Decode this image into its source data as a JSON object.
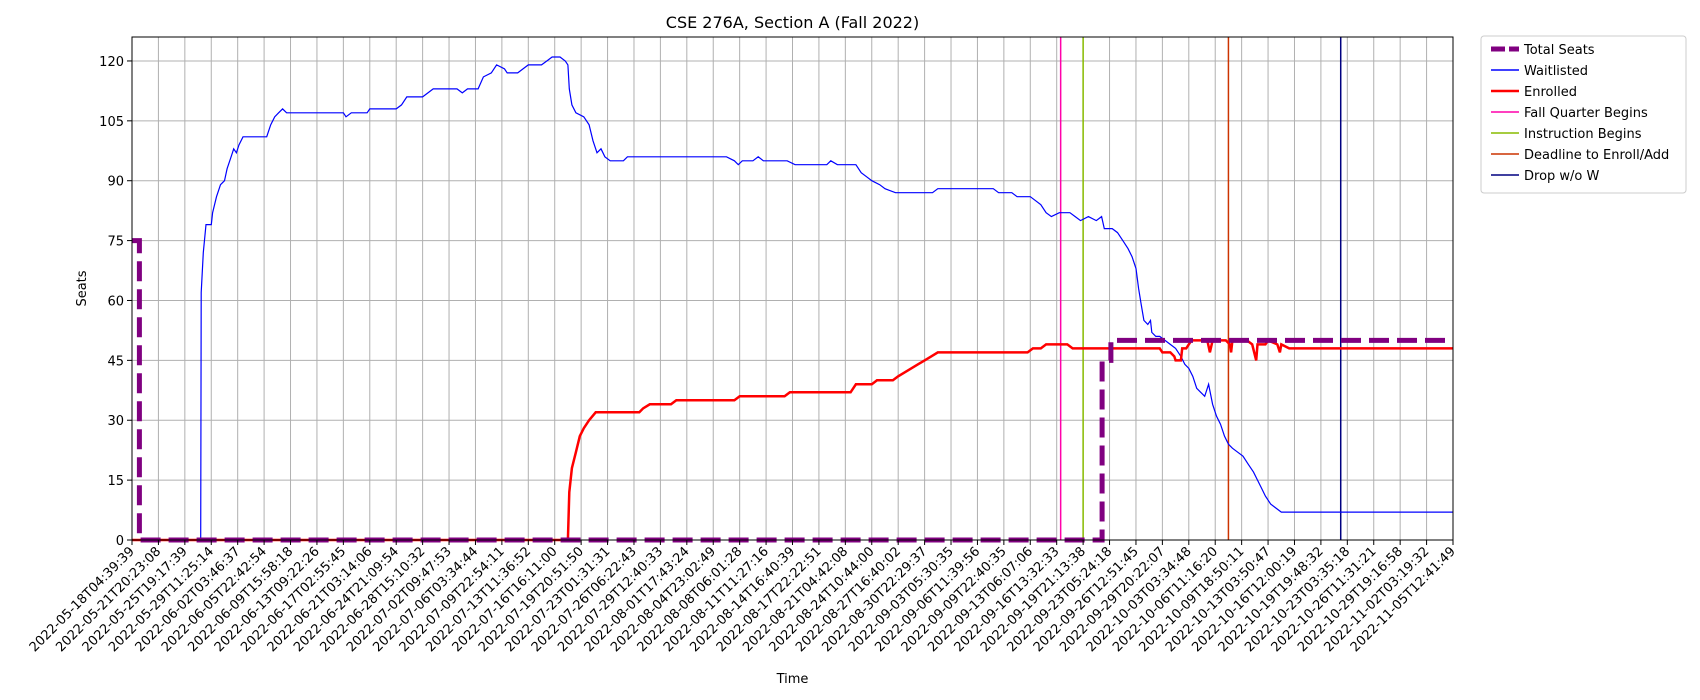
{
  "chart_data": {
    "type": "line",
    "title": "CSE 276A, Section A (Fall 2022)",
    "xlabel": "Time",
    "ylabel": "Seats",
    "ylim": [
      0,
      126
    ],
    "yticks": [
      0,
      15,
      30,
      45,
      60,
      75,
      90,
      105,
      120
    ],
    "grid": true,
    "legend_position": "outside-right",
    "x_tick_labels": [
      "2022-05-18T04:39:39",
      "2022-05-21T20:23:08",
      "2022-05-25T19:17:39",
      "2022-05-29T11:25:14",
      "2022-06-02T03:46:37",
      "2022-06-05T22:42:54",
      "2022-06-09T15:58:18",
      "2022-06-13T09:22:26",
      "2022-06-17T02:55:45",
      "2022-06-21T03:14:06",
      "2022-06-24T21:09:54",
      "2022-06-28T15:10:32",
      "2022-07-02T09:47:53",
      "2022-07-06T03:34:44",
      "2022-07-09T22:54:11",
      "2022-07-13T11:36:52",
      "2022-07-16T16:11:00",
      "2022-07-19T20:51:50",
      "2022-07-23T01:31:31",
      "2022-07-26T06:22:43",
      "2022-07-29T12:40:33",
      "2022-08-01T17:43:24",
      "2022-08-04T23:02:49",
      "2022-08-08T06:01:28",
      "2022-08-11T11:27:16",
      "2022-08-14T16:40:39",
      "2022-08-17T22:22:51",
      "2022-08-21T04:42:08",
      "2022-08-24T10:44:00",
      "2022-08-27T16:40:02",
      "2022-08-30T22:29:37",
      "2022-09-03T05:30:35",
      "2022-09-06T11:39:56",
      "2022-09-09T22:40:35",
      "2022-09-13T06:07:06",
      "2022-09-16T13:32:33",
      "2022-09-19T21:13:38",
      "2022-09-23T05:24:18",
      "2022-09-26T12:51:45",
      "2022-09-29T20:22:07",
      "2022-10-03T03:34:48",
      "2022-10-06T11:16:20",
      "2022-10-09T18:50:11",
      "2022-10-13T03:50:47",
      "2022-10-16T12:00:19",
      "2022-10-19T19:48:32",
      "2022-10-23T03:35:18",
      "2022-10-26T11:31:21",
      "2022-10-29T19:16:58",
      "2022-11-02T03:19:32",
      "2022-11-05T12:41:49"
    ],
    "x_range": [
      0,
      50
    ],
    "series": [
      {
        "name": "Total Seats",
        "color": "#800080",
        "style": "dashed",
        "points": [
          [
            0,
            75
          ],
          [
            0.28,
            75
          ],
          [
            0.28,
            0
          ],
          [
            36.72,
            0
          ],
          [
            36.72,
            45
          ],
          [
            37.05,
            45
          ],
          [
            37.05,
            50
          ],
          [
            50,
            50
          ]
        ]
      },
      {
        "name": "Waitlisted",
        "color": "#0000ff",
        "style": "solid",
        "points": [
          [
            0,
            0
          ],
          [
            2.6,
            0
          ],
          [
            2.62,
            62
          ],
          [
            2.7,
            72
          ],
          [
            2.8,
            79
          ],
          [
            3.0,
            79
          ],
          [
            3.05,
            82
          ],
          [
            3.2,
            86
          ],
          [
            3.35,
            89
          ],
          [
            3.5,
            90
          ],
          [
            3.6,
            93
          ],
          [
            3.75,
            96
          ],
          [
            3.85,
            98
          ],
          [
            3.95,
            97
          ],
          [
            4.05,
            99
          ],
          [
            4.2,
            101
          ],
          [
            4.5,
            101
          ],
          [
            4.7,
            101
          ],
          [
            5.1,
            101
          ],
          [
            5.25,
            104
          ],
          [
            5.4,
            106
          ],
          [
            5.55,
            107
          ],
          [
            5.7,
            108
          ],
          [
            5.85,
            107
          ],
          [
            6.2,
            107
          ],
          [
            7.0,
            107
          ],
          [
            8.0,
            107
          ],
          [
            8.1,
            106
          ],
          [
            8.3,
            107
          ],
          [
            8.9,
            107
          ],
          [
            9.0,
            108
          ],
          [
            10.0,
            108
          ],
          [
            10.2,
            109
          ],
          [
            10.4,
            111
          ],
          [
            11.0,
            111
          ],
          [
            11.2,
            112
          ],
          [
            11.4,
            113
          ],
          [
            12.3,
            113
          ],
          [
            12.5,
            112
          ],
          [
            12.7,
            113
          ],
          [
            13.1,
            113
          ],
          [
            13.3,
            116
          ],
          [
            13.6,
            117
          ],
          [
            13.8,
            119
          ],
          [
            14.1,
            118
          ],
          [
            14.2,
            117
          ],
          [
            14.6,
            117
          ],
          [
            14.8,
            118
          ],
          [
            15.0,
            119
          ],
          [
            15.5,
            119
          ],
          [
            15.7,
            120
          ],
          [
            15.9,
            121
          ],
          [
            16.2,
            121
          ],
          [
            16.4,
            120
          ],
          [
            16.5,
            119
          ],
          [
            16.55,
            113
          ],
          [
            16.65,
            109
          ],
          [
            16.8,
            107
          ],
          [
            17.1,
            106
          ],
          [
            17.3,
            104
          ],
          [
            17.45,
            100
          ],
          [
            17.6,
            97
          ],
          [
            17.75,
            98
          ],
          [
            17.9,
            96
          ],
          [
            18.1,
            95
          ],
          [
            18.6,
            95
          ],
          [
            18.75,
            96
          ],
          [
            19.5,
            96
          ],
          [
            22.0,
            96
          ],
          [
            22.5,
            96
          ],
          [
            22.8,
            95
          ],
          [
            22.95,
            94
          ],
          [
            23.1,
            95
          ],
          [
            23.5,
            95
          ],
          [
            23.7,
            96
          ],
          [
            23.9,
            95
          ],
          [
            24.8,
            95
          ],
          [
            25.1,
            94
          ],
          [
            25.6,
            94
          ],
          [
            26.3,
            94
          ],
          [
            26.45,
            95
          ],
          [
            26.7,
            94
          ],
          [
            27.4,
            94
          ],
          [
            27.6,
            92
          ],
          [
            27.8,
            91
          ],
          [
            28.0,
            90
          ],
          [
            28.3,
            89
          ],
          [
            28.5,
            88
          ],
          [
            28.9,
            87
          ],
          [
            29.5,
            87
          ],
          [
            30.3,
            87
          ],
          [
            30.5,
            88
          ],
          [
            32.0,
            88
          ],
          [
            32.6,
            88
          ],
          [
            32.8,
            87
          ],
          [
            33.3,
            87
          ],
          [
            33.5,
            86
          ],
          [
            34.0,
            86
          ],
          [
            34.2,
            85
          ],
          [
            34.4,
            84
          ],
          [
            34.6,
            82
          ],
          [
            34.8,
            81
          ],
          [
            35.1,
            82
          ],
          [
            35.5,
            82
          ],
          [
            35.7,
            81
          ],
          [
            35.9,
            80
          ],
          [
            36.2,
            81
          ],
          [
            36.5,
            80
          ],
          [
            36.7,
            81
          ],
          [
            36.8,
            78
          ],
          [
            37.1,
            78
          ],
          [
            37.3,
            77
          ],
          [
            37.5,
            75
          ],
          [
            37.7,
            73
          ],
          [
            37.85,
            71
          ],
          [
            38.0,
            68
          ],
          [
            38.1,
            63
          ],
          [
            38.2,
            59
          ],
          [
            38.3,
            55
          ],
          [
            38.45,
            54
          ],
          [
            38.55,
            55
          ],
          [
            38.6,
            52
          ],
          [
            38.75,
            51
          ],
          [
            38.9,
            51
          ],
          [
            39.1,
            50
          ],
          [
            39.3,
            49
          ],
          [
            39.5,
            48
          ],
          [
            39.7,
            46
          ],
          [
            39.85,
            44
          ],
          [
            40.0,
            43
          ],
          [
            40.15,
            41
          ],
          [
            40.3,
            38
          ],
          [
            40.45,
            37
          ],
          [
            40.6,
            36
          ],
          [
            40.75,
            39
          ],
          [
            40.9,
            34
          ],
          [
            41.05,
            31
          ],
          [
            41.2,
            29
          ],
          [
            41.35,
            26
          ],
          [
            41.5,
            24
          ],
          [
            41.65,
            23
          ],
          [
            41.85,
            22
          ],
          [
            42.05,
            21
          ],
          [
            42.25,
            19
          ],
          [
            42.45,
            17
          ],
          [
            42.6,
            15
          ],
          [
            42.75,
            13
          ],
          [
            42.9,
            11
          ],
          [
            43.1,
            9
          ],
          [
            43.3,
            8
          ],
          [
            43.5,
            7
          ],
          [
            45.0,
            7
          ],
          [
            50,
            7
          ]
        ]
      },
      {
        "name": "Enrolled",
        "color": "#ff0000",
        "style": "solid",
        "points": [
          [
            0,
            0
          ],
          [
            16.5,
            0
          ],
          [
            16.55,
            12
          ],
          [
            16.65,
            18
          ],
          [
            16.8,
            22
          ],
          [
            16.95,
            26
          ],
          [
            17.1,
            28
          ],
          [
            17.3,
            30
          ],
          [
            17.55,
            32
          ],
          [
            19.2,
            32
          ],
          [
            19.35,
            33
          ],
          [
            19.6,
            34
          ],
          [
            20.4,
            34
          ],
          [
            20.6,
            35
          ],
          [
            22.8,
            35
          ],
          [
            23.0,
            36
          ],
          [
            24.7,
            36
          ],
          [
            24.9,
            37
          ],
          [
            27.2,
            37
          ],
          [
            27.4,
            39
          ],
          [
            28.0,
            39
          ],
          [
            28.2,
            40
          ],
          [
            28.8,
            40
          ],
          [
            29.0,
            41
          ],
          [
            29.25,
            42
          ],
          [
            29.5,
            43
          ],
          [
            29.75,
            44
          ],
          [
            30.0,
            45
          ],
          [
            30.25,
            46
          ],
          [
            30.5,
            47
          ],
          [
            33.9,
            47
          ],
          [
            34.1,
            48
          ],
          [
            34.4,
            48
          ],
          [
            34.6,
            49
          ],
          [
            35.4,
            49
          ],
          [
            35.6,
            48
          ],
          [
            36.3,
            48
          ],
          [
            38.4,
            48
          ],
          [
            38.9,
            48
          ],
          [
            39.0,
            47
          ],
          [
            39.3,
            47
          ],
          [
            39.45,
            46
          ],
          [
            39.5,
            45
          ],
          [
            39.7,
            45
          ],
          [
            39.75,
            48
          ],
          [
            39.9,
            48
          ],
          [
            40.1,
            50
          ],
          [
            40.5,
            50
          ],
          [
            40.7,
            50
          ],
          [
            40.8,
            47
          ],
          [
            40.9,
            50
          ],
          [
            41.4,
            50
          ],
          [
            41.55,
            49
          ],
          [
            41.6,
            47
          ],
          [
            41.65,
            50
          ],
          [
            42.2,
            50
          ],
          [
            42.4,
            49
          ],
          [
            42.55,
            45
          ],
          [
            42.6,
            49
          ],
          [
            42.9,
            49
          ],
          [
            43.0,
            50
          ],
          [
            43.35,
            49
          ],
          [
            43.45,
            47
          ],
          [
            43.5,
            49
          ],
          [
            43.8,
            48
          ],
          [
            44.2,
            48
          ],
          [
            45.0,
            48
          ],
          [
            50,
            48
          ]
        ]
      },
      {
        "name": "Fall Quarter Begins",
        "color": "#ff00aa",
        "style": "vline",
        "x": 35.15
      },
      {
        "name": "Instruction Begins",
        "color": "#88bb00",
        "style": "vline",
        "x": 36.0
      },
      {
        "name": "Deadline to Enroll/Add",
        "color": "#cc3300",
        "style": "vline",
        "x": 41.5
      },
      {
        "name": "Drop w/o W",
        "color": "#000080",
        "style": "vline",
        "x": 45.75
      }
    ]
  }
}
